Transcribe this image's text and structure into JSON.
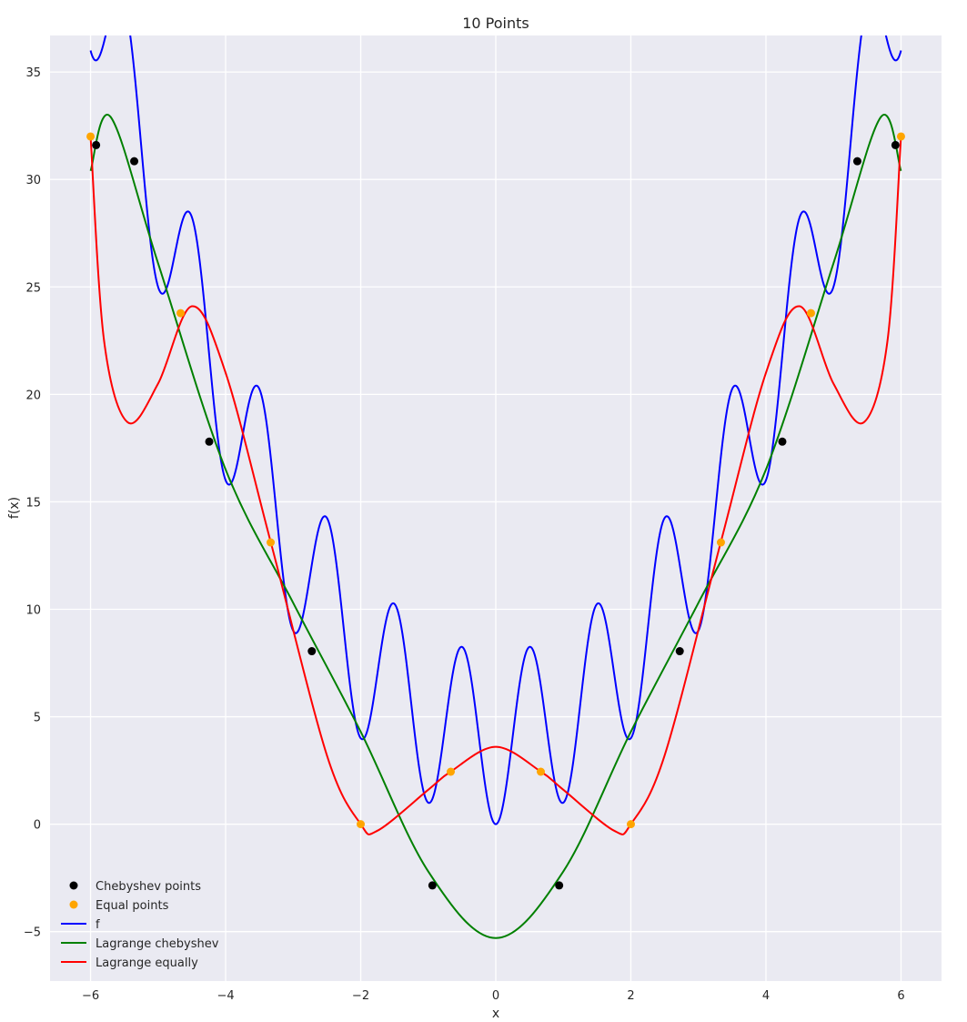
{
  "chart_data": {
    "type": "line",
    "title": "10 Points",
    "xlabel": "x",
    "ylabel": "f(x)",
    "xlim": [
      -6.6,
      6.6
    ],
    "ylim": [
      -7.3,
      36.7
    ],
    "xticks": [
      -6,
      -4,
      -2,
      0,
      2,
      4,
      6
    ],
    "yticks": [
      -5,
      0,
      5,
      10,
      15,
      20,
      25,
      30,
      35
    ],
    "xtick_labels": [
      "−6",
      "−4",
      "−2",
      "0",
      "2",
      "4",
      "6"
    ],
    "ytick_labels": [
      "−5",
      "0",
      "5",
      "10",
      "15",
      "20",
      "25",
      "30",
      "35"
    ],
    "grid": true,
    "legend_position": "lower-left",
    "style": "seaborn",
    "colors": {
      "background": "#eaeaf2",
      "grid": "#ffffff",
      "f": "#0000ff",
      "lagrange_chebyshev": "#008000",
      "lagrange_equally": "#ff0000",
      "chebyshev_points": "#000000",
      "equal_points": "#ffa500"
    },
    "function": {
      "expression": "x^2 + 4 - 4*cos(2*pi*x)",
      "domain": [
        -6,
        6
      ]
    },
    "series": [
      {
        "name": "Chebyshev points",
        "kind": "markers",
        "color": "#000000",
        "x": [
          -5.9178,
          -5.3533,
          -4.2426,
          -2.7239,
          -0.9386,
          0.9386,
          2.7239,
          4.2426,
          5.3533,
          5.9178
        ],
        "y": [
          31.6,
          30.85,
          17.8,
          8.05,
          -2.85,
          -2.85,
          8.05,
          17.8,
          30.85,
          31.6
        ]
      },
      {
        "name": "Equal points",
        "kind": "markers",
        "color": "#ffa500",
        "x": [
          -6,
          -4.6667,
          -3.3333,
          -2,
          -0.6667,
          0.6667,
          2,
          3.3333,
          4.6667,
          6
        ],
        "y": [
          32,
          23.78,
          13.11,
          0,
          2.44,
          2.44,
          0,
          13.11,
          23.78,
          32
        ]
      },
      {
        "name": "f",
        "kind": "line",
        "color": "#0000ff",
        "x": [
          -6,
          -5.75,
          -5.55,
          -5.3,
          -5,
          -4.55,
          -4,
          -3.55,
          -3,
          -2.55,
          -2,
          -1.55,
          -1,
          -0.55,
          0,
          0.55,
          1,
          1.55,
          2,
          2.55,
          3,
          3.55,
          4,
          4.55,
          5,
          5.3,
          5.55,
          5.75,
          6
        ],
        "y": [
          32,
          33.2,
          34.6,
          29.5,
          20.7,
          24.5,
          11.8,
          16.4,
          4.9,
          10.3,
          0,
          6.3,
          -3,
          4.2,
          -4,
          4.2,
          -3,
          6.3,
          0,
          10.3,
          4.9,
          16.4,
          11.8,
          24.5,
          20.7,
          29.5,
          34.6,
          33.2,
          32
        ]
      },
      {
        "name": "Lagrange chebyshev",
        "kind": "line",
        "color": "#008000",
        "x": [
          -6,
          -5.7,
          -5,
          -4,
          -3,
          -2,
          -1,
          0,
          1,
          2,
          3,
          4,
          5,
          5.7,
          6
        ],
        "y": [
          30.4,
          32.9,
          26.1,
          16.5,
          10.3,
          4.3,
          -2.2,
          -5.3,
          -2.2,
          4.3,
          10.3,
          16.5,
          26.1,
          32.9,
          30.4
        ]
      },
      {
        "name": "Lagrange equally",
        "kind": "line",
        "color": "#ff0000",
        "x": [
          -6,
          -5.8,
          -5.45,
          -5,
          -4.5,
          -4,
          -3.33,
          -2.5,
          -2,
          -1.75,
          -1,
          -0.67,
          0,
          0.67,
          1,
          1.75,
          2,
          2.5,
          3.33,
          4,
          4.5,
          5,
          5.45,
          5.8,
          6
        ],
        "y": [
          32,
          22.5,
          18.7,
          20.5,
          24.1,
          21.0,
          13.1,
          3.2,
          0,
          -0.3,
          1.6,
          2.44,
          3.6,
          2.44,
          1.6,
          -0.3,
          0,
          3.2,
          13.1,
          21.0,
          24.1,
          20.5,
          18.7,
          22.5,
          32
        ]
      }
    ],
    "legend": [
      {
        "label": "Chebyshev points",
        "kind": "marker",
        "color": "#000000"
      },
      {
        "label": "Equal points",
        "kind": "marker",
        "color": "#ffa500"
      },
      {
        "label": "f",
        "kind": "line",
        "color": "#0000ff"
      },
      {
        "label": "Lagrange chebyshev",
        "kind": "line",
        "color": "#008000"
      },
      {
        "label": "Lagrange equally",
        "kind": "line",
        "color": "#ff0000"
      }
    ]
  }
}
